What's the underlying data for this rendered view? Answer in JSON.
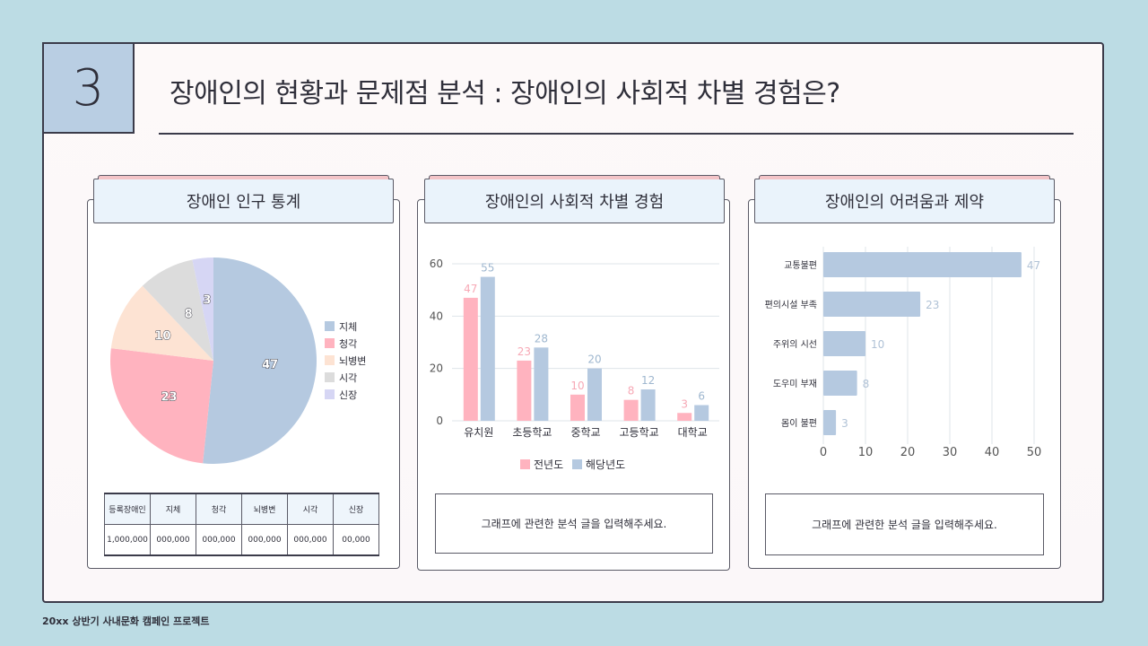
{
  "slide": {
    "number": "3",
    "title": "장애인의 현황과 문제점 분석 : 장애인의 사회적 차별 경험은?"
  },
  "footer": "20xx 상반기 사내문화 캠페인 프로젝트",
  "colors": {
    "blue": "#b5c9e0",
    "pink": "#ffb3bf",
    "peach": "#fde3d3",
    "grey": "#dcdcdc",
    "lavender": "#d6d6f4"
  },
  "cards": {
    "pie": {
      "title": "장애인 인구 통계"
    },
    "bar": {
      "title": "장애인의 사회적 차별 경험",
      "note": "그래프에 관련한 분석 글을 입력해주세요."
    },
    "hbar": {
      "title": "장애인의 어려움과 제약",
      "note": "그래프에 관련한 분석 글을 입력해주세요."
    }
  },
  "table": {
    "headers": [
      "등록장애인",
      "지체",
      "청각",
      "뇌병변",
      "시각",
      "신장"
    ],
    "values": [
      "1,000,000",
      "000,000",
      "000,000",
      "000,000",
      "000,000",
      "00,000"
    ]
  },
  "chart_data": [
    {
      "type": "pie",
      "categories": [
        "지체",
        "청각",
        "뇌병변",
        "시각",
        "신장"
      ],
      "values": [
        47,
        23,
        10,
        8,
        3
      ],
      "legend_position": "right"
    },
    {
      "type": "bar",
      "categories": [
        "유치원",
        "초등학교",
        "중학교",
        "고등학교",
        "대학교"
      ],
      "series": [
        {
          "name": "전년도",
          "values": [
            47,
            23,
            10,
            8,
            3
          ]
        },
        {
          "name": "해당년도",
          "values": [
            55,
            28,
            20,
            12,
            6
          ]
        }
      ],
      "ylim": [
        0,
        60
      ],
      "yticks": [
        0,
        20,
        40,
        60
      ],
      "grid": true,
      "legend_position": "bottom"
    },
    {
      "type": "bar",
      "orientation": "horizontal",
      "categories": [
        "교통불편",
        "편의시설 부족",
        "주위의 시선",
        "도우미 부재",
        "몸이 불편"
      ],
      "values": [
        47,
        23,
        10,
        8,
        3
      ],
      "xlim": [
        0,
        50
      ],
      "xticks": [
        0,
        10,
        20,
        30,
        40,
        50
      ],
      "grid": true
    }
  ]
}
